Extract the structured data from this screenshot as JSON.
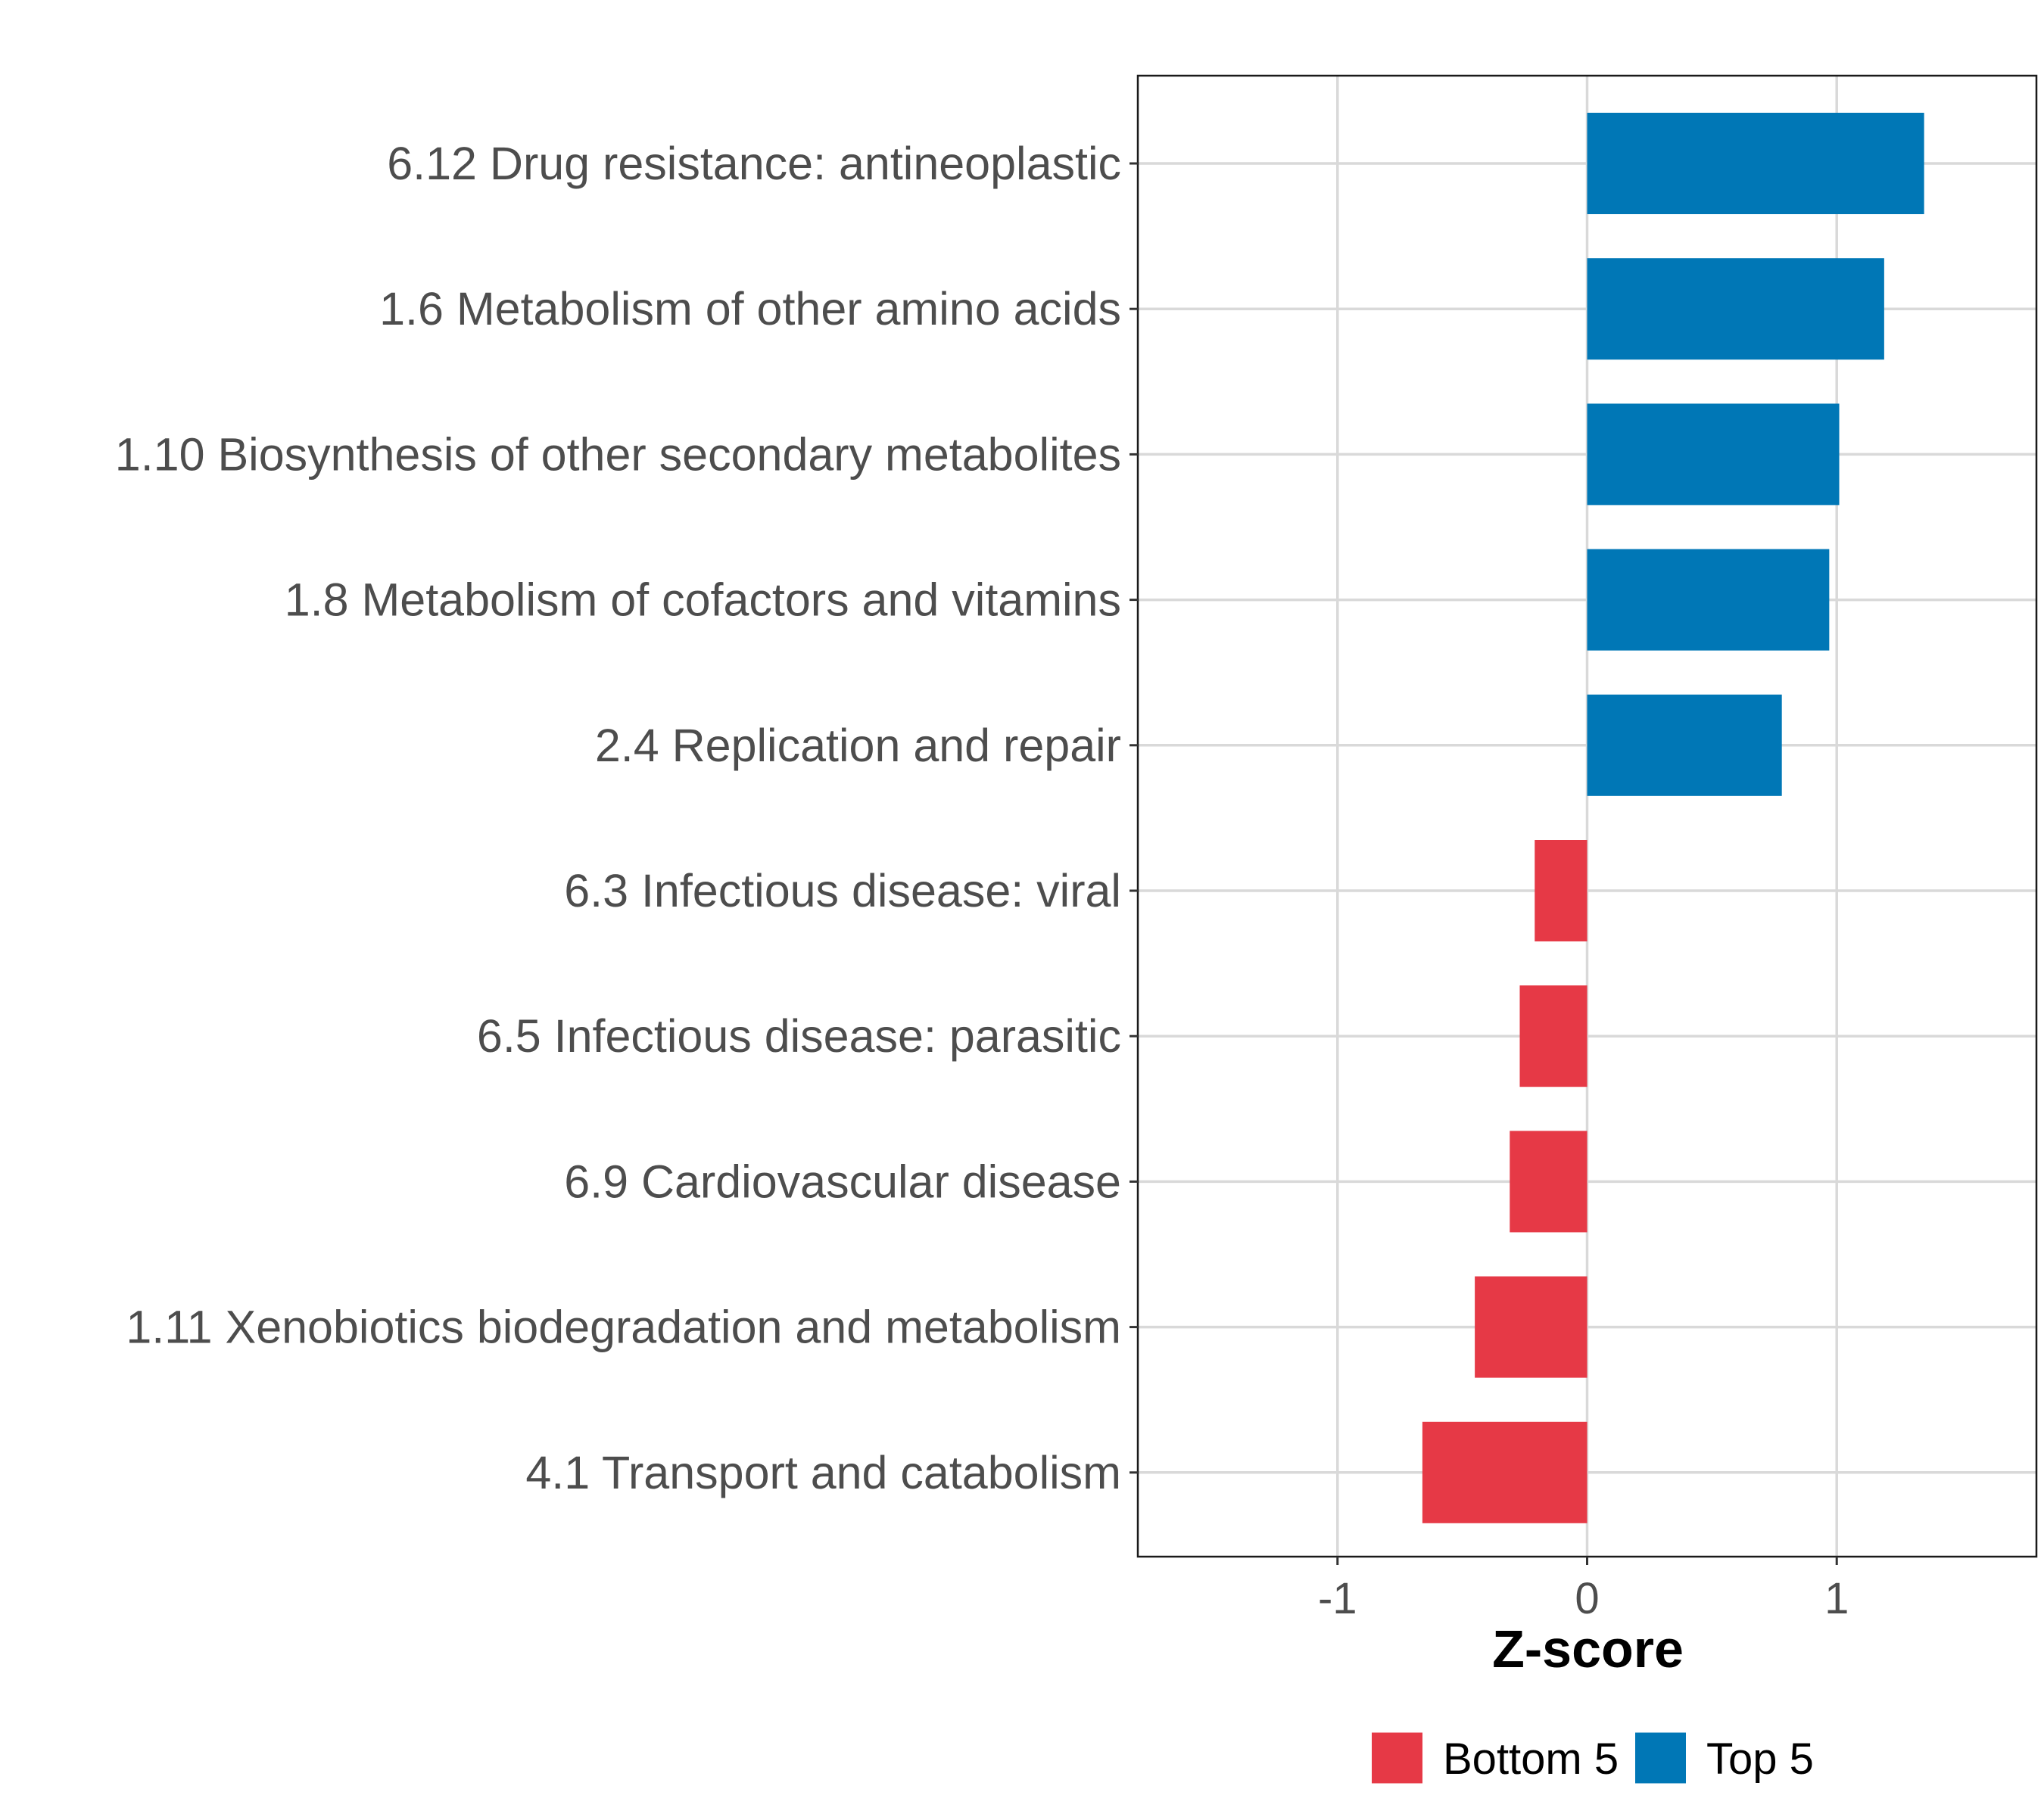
{
  "chart_data": {
    "type": "bar",
    "orientation": "horizontal",
    "title": "",
    "xlabel": "Z-score",
    "ylabel": "",
    "xlim": [
      -1.8,
      1.8
    ],
    "x_ticks": [
      -1,
      0,
      1
    ],
    "x_tick_labels": [
      "-1",
      "0",
      "1"
    ],
    "grid": true,
    "legend_position": "bottom",
    "categories": [
      "6.12 Drug resistance: antineoplastic",
      "1.6 Metabolism of other amino acids",
      "1.10 Biosynthesis of other secondary metabolites",
      "1.8 Metabolism of cofactors and vitamins",
      "2.4 Replication and repair",
      "6.3 Infectious disease: viral",
      "6.5 Infectious disease: parasitic",
      "6.9 Cardiovascular disease",
      "1.11 Xenobiotics biodegradation and metabolism",
      "4.1 Transport and catabolism"
    ],
    "values": [
      1.35,
      1.19,
      1.01,
      0.97,
      0.78,
      -0.21,
      -0.27,
      -0.31,
      -0.45,
      -0.66
    ],
    "groups": [
      "Top 5",
      "Top 5",
      "Top 5",
      "Top 5",
      "Top 5",
      "Bottom 5",
      "Bottom 5",
      "Bottom 5",
      "Bottom 5",
      "Bottom 5"
    ],
    "legend": [
      {
        "name": "Bottom 5",
        "color": "#e63946"
      },
      {
        "name": "Top 5",
        "color": "#0077b6"
      }
    ]
  }
}
